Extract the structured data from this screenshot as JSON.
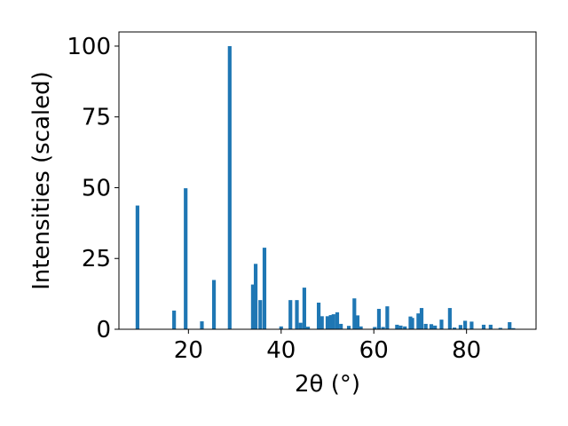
{
  "chart_data": {
    "type": "bar",
    "xlabel": "2θ (°)",
    "ylabel": "Intensities (scaled)",
    "xlim": [
      5,
      95
    ],
    "ylim": [
      0,
      105
    ],
    "grid": false,
    "bar_color": "#1f77b4",
    "x_ticks": [
      "20",
      "40",
      "60",
      "80"
    ],
    "x_tick_values": [
      20,
      40,
      60,
      80
    ],
    "y_ticks": [
      "0",
      "25",
      "50",
      "75",
      "100"
    ],
    "y_tick_values": [
      0,
      25,
      50,
      75,
      100
    ],
    "bar_width": 0.8,
    "x": [
      9.0,
      16.9,
      19.4,
      22.9,
      25.5,
      28.9,
      33.9,
      34.5,
      35.5,
      36.4,
      40.0,
      42.0,
      43.4,
      44.2,
      45.0,
      45.8,
      48.1,
      48.8,
      50.0,
      50.7,
      51.3,
      52.1,
      52.9,
      54.6,
      55.8,
      56.5,
      57.2,
      60.2,
      61.1,
      62.0,
      62.9,
      65.0,
      65.8,
      66.7,
      67.9,
      68.3,
      69.6,
      70.3,
      71.2,
      72.4,
      73.2,
      74.6,
      76.4,
      77.4,
      78.7,
      79.7,
      81.1,
      83.7,
      85.2,
      87.3,
      89.3,
      90.1
    ],
    "values": [
      43.7,
      6.6,
      49.8,
      2.8,
      17.4,
      100.0,
      15.8,
      23.1,
      10.3,
      28.8,
      1.0,
      10.3,
      10.3,
      2.3,
      14.7,
      0.9,
      9.4,
      4.6,
      4.6,
      5.0,
      5.3,
      6.0,
      1.9,
      1.2,
      10.9,
      4.9,
      1.0,
      0.8,
      7.2,
      0.8,
      8.1,
      1.6,
      1.3,
      1.0,
      4.5,
      4.0,
      5.6,
      7.5,
      1.9,
      1.8,
      1.3,
      3.4,
      7.5,
      0.6,
      1.5,
      3.0,
      2.7,
      1.6,
      1.6,
      0.5,
      2.5,
      0.4
    ]
  }
}
